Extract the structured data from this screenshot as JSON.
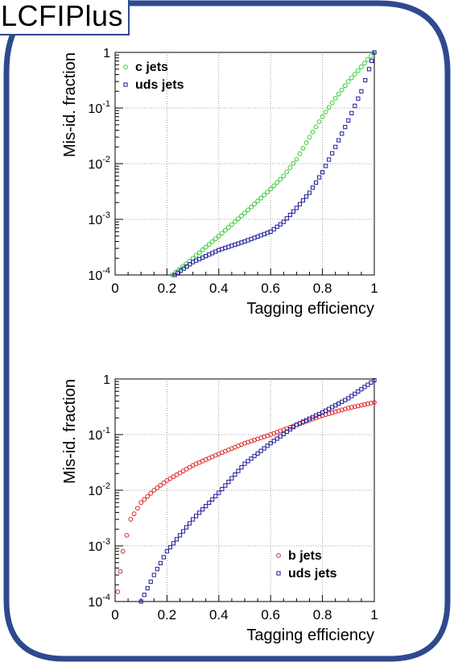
{
  "title": "LCFIPlus",
  "colors": {
    "frame": "#2e4a8e",
    "c_jets": "#33cc33",
    "uds_jets": "#1a1a99",
    "b_jets": "#dd2222"
  },
  "chart_data": [
    {
      "type": "scatter",
      "xlabel": "Tagging efficiency",
      "ylabel": "Mis-id. fraction",
      "xlim": [
        0,
        1
      ],
      "ylim": [
        0.0001,
        1
      ],
      "yscale": "log",
      "x_ticks": [
        "0",
        "0.2",
        "0.4",
        "0.6",
        "0.8",
        "1"
      ],
      "y_ticks": [
        "10^-4",
        "10^-3",
        "10^-2",
        "10^-1",
        "1"
      ],
      "grid": true,
      "legend_position": "top-left",
      "series": [
        {
          "name": "c jets",
          "marker": "circle",
          "color": "#33cc33",
          "points": [
            [
              0.22,
              0.0001
            ],
            [
              0.3,
              0.0002
            ],
            [
              0.4,
              0.0005
            ],
            [
              0.5,
              0.0013
            ],
            [
              0.6,
              0.0035
            ],
            [
              0.65,
              0.006
            ],
            [
              0.7,
              0.012
            ],
            [
              0.75,
              0.03
            ],
            [
              0.8,
              0.07
            ],
            [
              0.85,
              0.15
            ],
            [
              0.9,
              0.3
            ],
            [
              0.95,
              0.55
            ],
            [
              1.0,
              1.0
            ]
          ]
        },
        {
          "name": "uds jets",
          "marker": "square",
          "color": "#1a1a99",
          "points": [
            [
              0.23,
              0.0001
            ],
            [
              0.3,
              0.00017
            ],
            [
              0.4,
              0.00028
            ],
            [
              0.5,
              0.0004
            ],
            [
              0.6,
              0.0006
            ],
            [
              0.65,
              0.0009
            ],
            [
              0.7,
              0.0016
            ],
            [
              0.75,
              0.003
            ],
            [
              0.8,
              0.007
            ],
            [
              0.85,
              0.02
            ],
            [
              0.9,
              0.06
            ],
            [
              0.95,
              0.2
            ],
            [
              0.98,
              0.5
            ],
            [
              1.0,
              1.0
            ]
          ]
        }
      ]
    },
    {
      "type": "scatter",
      "xlabel": "Tagging efficiency",
      "ylabel": "Mis-id. fraction",
      "xlim": [
        0,
        1
      ],
      "ylim": [
        0.0001,
        1
      ],
      "yscale": "log",
      "x_ticks": [
        "0",
        "0.2",
        "0.4",
        "0.6",
        "0.8",
        "1"
      ],
      "y_ticks": [
        "10^-4",
        "10^-3",
        "10^-2",
        "10^-1",
        "1"
      ],
      "grid": true,
      "legend_position": "bottom-right",
      "series": [
        {
          "name": "b jets",
          "marker": "circle",
          "color": "#dd2222",
          "points": [
            [
              0.01,
              0.00015
            ],
            [
              0.03,
              0.0008
            ],
            [
              0.06,
              0.003
            ],
            [
              0.1,
              0.006
            ],
            [
              0.15,
              0.01
            ],
            [
              0.2,
              0.015
            ],
            [
              0.3,
              0.028
            ],
            [
              0.4,
              0.045
            ],
            [
              0.5,
              0.07
            ],
            [
              0.6,
              0.1
            ],
            [
              0.7,
              0.15
            ],
            [
              0.8,
              0.22
            ],
            [
              0.9,
              0.3
            ],
            [
              1.0,
              0.38
            ]
          ]
        },
        {
          "name": "uds jets",
          "marker": "square",
          "color": "#1a1a99",
          "points": [
            [
              0.1,
              0.0001
            ],
            [
              0.15,
              0.0003
            ],
            [
              0.2,
              0.0008
            ],
            [
              0.3,
              0.003
            ],
            [
              0.4,
              0.009
            ],
            [
              0.5,
              0.03
            ],
            [
              0.6,
              0.07
            ],
            [
              0.7,
              0.15
            ],
            [
              0.8,
              0.25
            ],
            [
              0.9,
              0.45
            ],
            [
              1.0,
              0.95
            ]
          ]
        }
      ]
    }
  ]
}
